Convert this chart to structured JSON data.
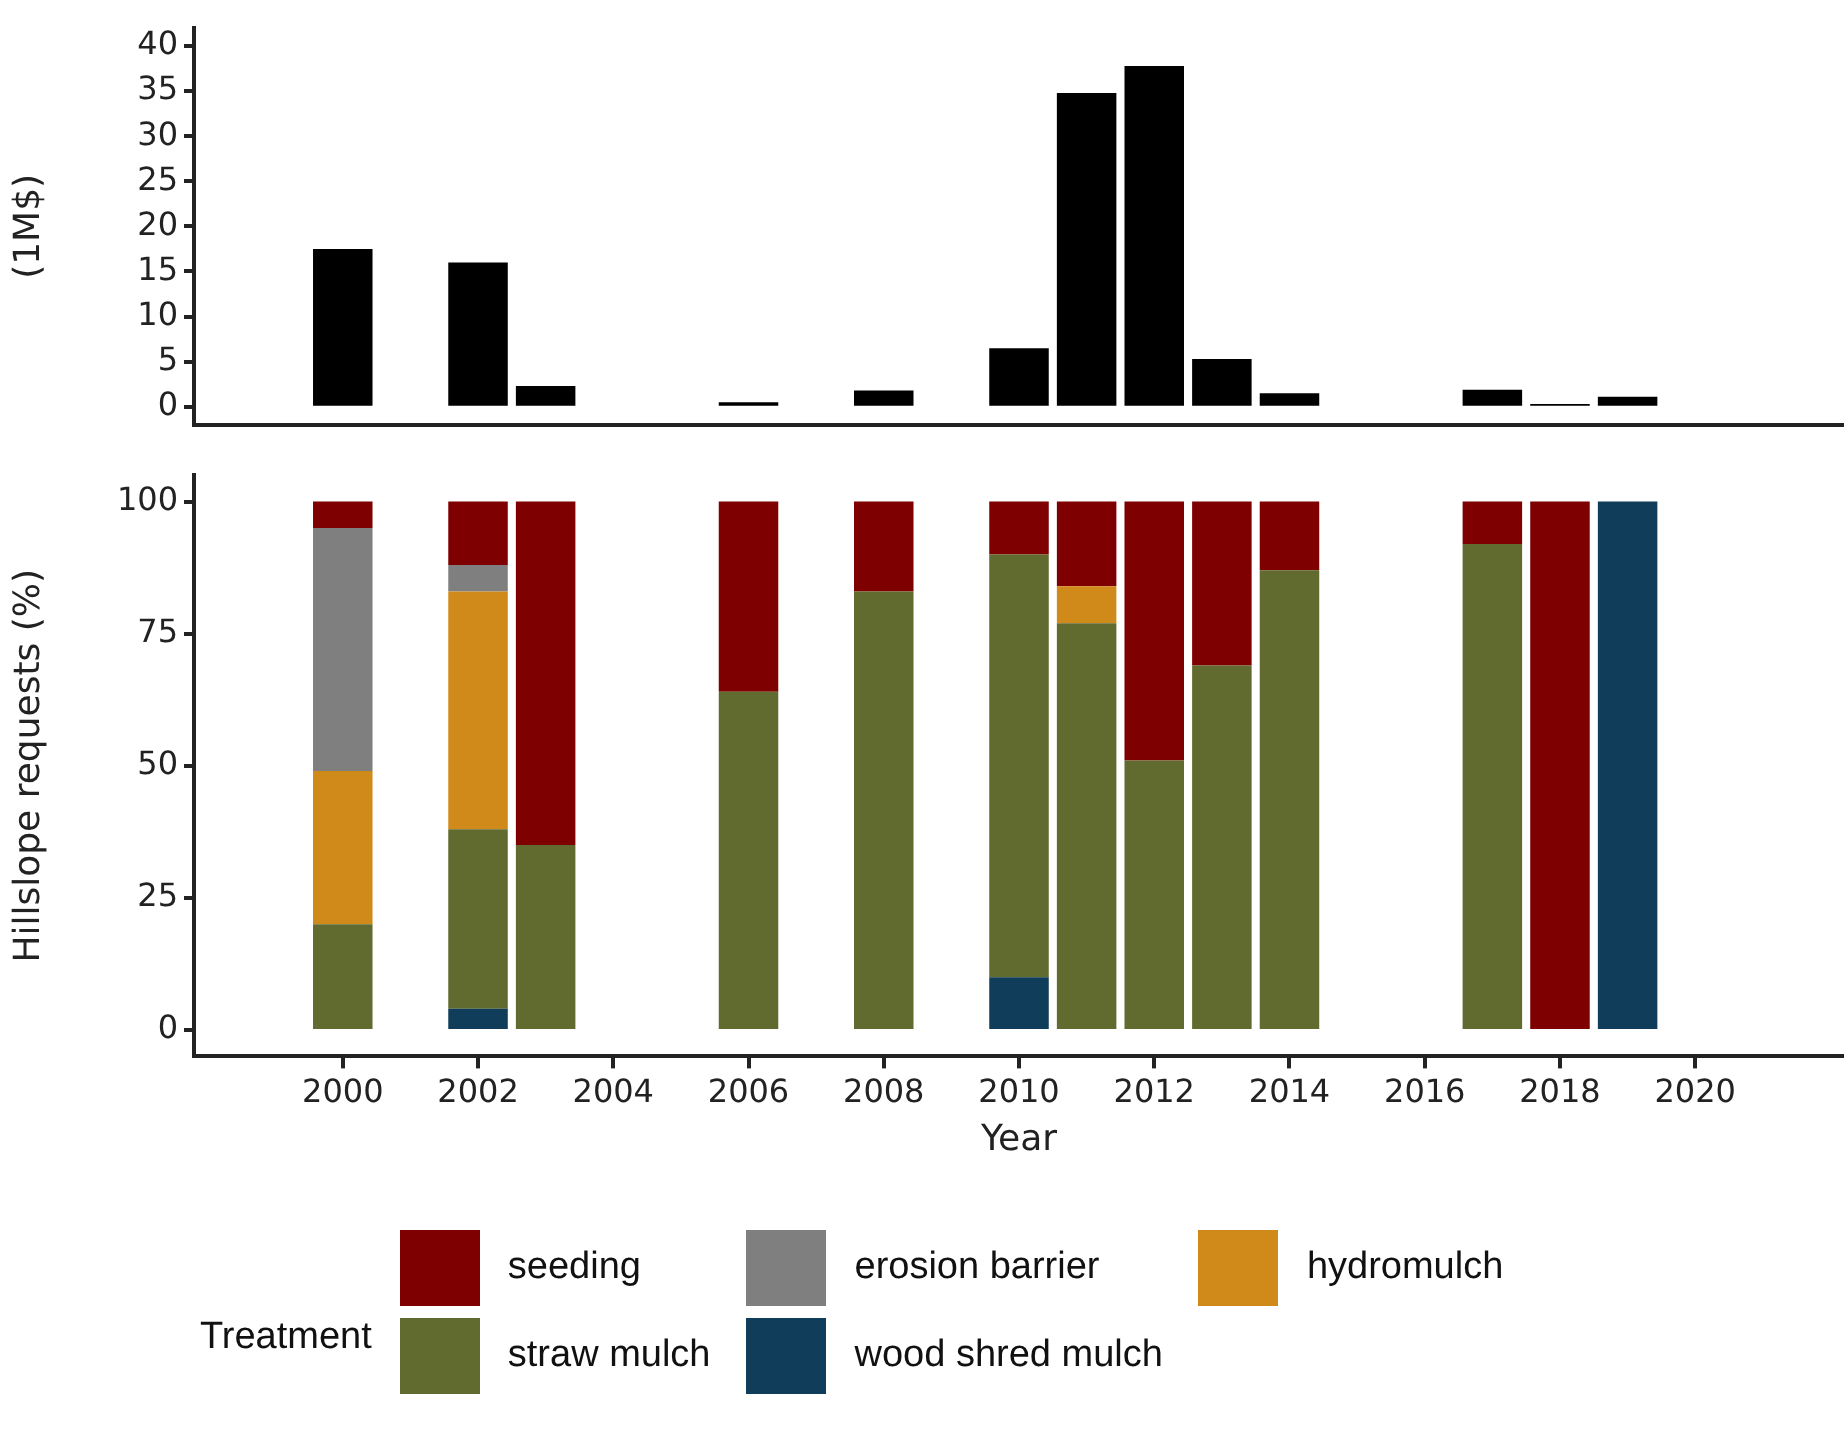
{
  "chart_data": [
    {
      "type": "bar",
      "ylabel": "(1M$)",
      "x": [
        2000,
        2002,
        2003,
        2006,
        2008,
        2010,
        2011,
        2012,
        2013,
        2014,
        2017,
        2018,
        2019
      ],
      "series": [
        {
          "color": "#000000",
          "values": [
            17.5,
            16,
            2.3,
            0.5,
            1.8,
            6.5,
            34.8,
            37.8,
            5.3,
            1.5,
            1.9,
            0.3,
            1.1
          ]
        }
      ],
      "xlim": [
        1997.8,
        2022.2
      ],
      "ylim": [
        -2,
        42
      ],
      "yticks": [
        0,
        5,
        10,
        15,
        20,
        25,
        30,
        35,
        40
      ],
      "tick_labels": "y",
      "grid": false,
      "legend": false
    },
    {
      "type": "bar",
      "stacked": true,
      "xlabel": "Year",
      "ylabel": "Hillslope requests (%)",
      "legend_title": "Treatment",
      "legend": "bottom",
      "grid": false,
      "x": [
        2000,
        2002,
        2003,
        2006,
        2008,
        2010,
        2011,
        2012,
        2013,
        2014,
        2017,
        2018,
        2019
      ],
      "series": [
        {
          "name": "wood shred mulch",
          "color": "#0f3d5a",
          "values": [
            null,
            4,
            null,
            null,
            null,
            10,
            null,
            null,
            null,
            null,
            null,
            null,
            100
          ]
        },
        {
          "name": "straw mulch",
          "color": "#616a2f",
          "values": [
            20,
            34,
            35,
            64,
            83,
            80,
            77,
            51,
            69,
            87,
            92,
            null,
            null
          ]
        },
        {
          "name": "hydromulch",
          "color": "#d08a1a",
          "values": [
            29,
            45,
            null,
            null,
            null,
            null,
            7,
            null,
            null,
            null,
            null,
            null,
            null
          ]
        },
        {
          "name": "erosion barrier",
          "color": "#7f7f7f",
          "values": [
            46,
            5,
            null,
            null,
            null,
            null,
            null,
            null,
            null,
            null,
            null,
            null,
            null
          ]
        },
        {
          "name": "seeding",
          "color": "#7f0000",
          "values": [
            5,
            12,
            65,
            36,
            17,
            10,
            16,
            49,
            31,
            13,
            8,
            100,
            null
          ]
        }
      ],
      "xlim": [
        1997.8,
        2022.2
      ],
      "xticks": [
        2000,
        2002,
        2004,
        2006,
        2008,
        2010,
        2012,
        2014,
        2016,
        2018,
        2020
      ],
      "ylim": [
        -5,
        105
      ],
      "yticks": [
        0,
        25,
        50,
        75,
        100
      ]
    }
  ]
}
